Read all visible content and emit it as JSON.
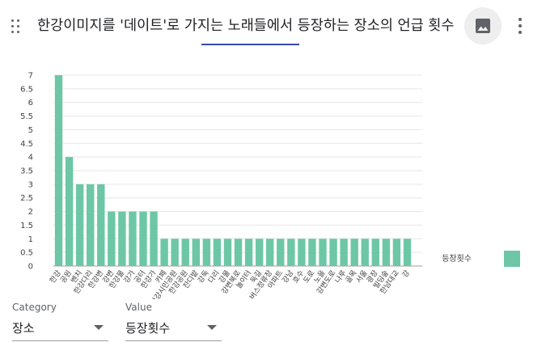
{
  "header": {
    "title": "한강이미지를 '데이트'로 가지는 노래들에서 등장하는 장소의 언급 횟수"
  },
  "controls": {
    "category": {
      "label": "Category",
      "value": "장소"
    },
    "value": {
      "label": "Value",
      "value": "등장횟수"
    }
  },
  "colors": {
    "bar": "#6dc7a7",
    "underline": "#3949ab"
  },
  "icons": {
    "drag": "drag-handle-icon",
    "image": "image-icon",
    "more": "more-vert-icon"
  },
  "chart_data": {
    "type": "bar",
    "legend": "등장횟수",
    "ylim": [
      0,
      7
    ],
    "yticks": [
      "0",
      "0.5",
      "1",
      "1.5",
      "2",
      "2.5",
      "3",
      "3.5",
      "4",
      "4.5",
      "5",
      "5.5",
      "6",
      "6.5",
      "7"
    ],
    "categories": [
      "한강",
      "공원",
      "벤치",
      "한강다리",
      "한강변",
      "강변",
      "한강물",
      "강가",
      "공터",
      "한강가",
      "카페",
      "한강시민공원",
      "한강공원",
      "잔디밭",
      "강둑",
      "다리",
      "강물",
      "강변북로",
      "놀이터",
      "둑길",
      "버스정류장",
      "아파트",
      "강남",
      "호수",
      "도로",
      "노을",
      "강변도로",
      "나루",
      "골목",
      "서울",
      "광장",
      "빌딩숲",
      "한남대교",
      "강"
    ],
    "values": [
      7,
      4,
      3,
      3,
      3,
      2,
      2,
      2,
      2,
      2,
      1,
      1,
      1,
      1,
      1,
      1,
      1,
      1,
      1,
      1,
      1,
      1,
      1,
      1,
      1,
      1,
      1,
      1,
      1,
      1,
      1,
      1,
      1,
      1
    ]
  }
}
